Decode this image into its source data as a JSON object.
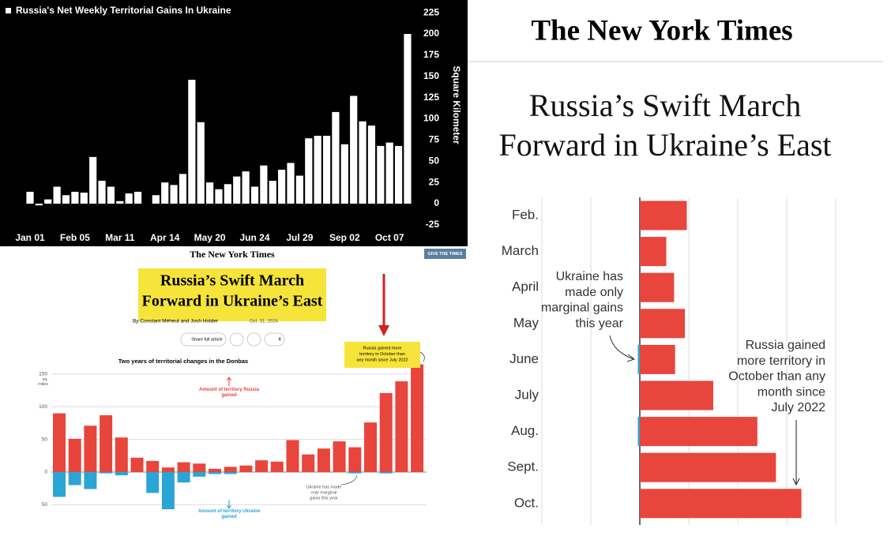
{
  "chart_data": [
    {
      "type": "bar",
      "title": "Russia's Net Weekly Territorial Gains In Ukraine",
      "y_label": "Square Kilometer",
      "categories": [
        "Jan 01",
        null,
        null,
        null,
        null,
        "Feb 05",
        null,
        null,
        null,
        null,
        "Mar 11",
        null,
        null,
        null,
        null,
        "Apr 14",
        null,
        null,
        null,
        null,
        "May 20",
        null,
        null,
        null,
        null,
        "Jun 24",
        null,
        null,
        null,
        null,
        "Jul 29",
        null,
        null,
        null,
        null,
        "Sep 02",
        null,
        null,
        null,
        null,
        "Oct 07",
        null,
        null
      ],
      "values": [
        14,
        -2,
        5,
        20,
        10,
        14,
        13,
        55,
        27,
        20,
        3,
        12,
        14,
        0,
        10,
        25,
        22,
        35,
        146,
        96,
        25,
        17,
        23,
        32,
        38,
        20,
        45,
        27,
        40,
        48,
        33,
        77,
        80,
        80,
        108,
        70,
        127,
        97,
        92,
        68,
        72,
        68,
        200
      ],
      "color": "#ffffff",
      "background": "#000000",
      "ylim": [
        -30,
        230
      ],
      "yticks": [
        225,
        200,
        175,
        150,
        125,
        100,
        75,
        50,
        25,
        0,
        -25
      ],
      "axis_side": "right"
    },
    {
      "type": "bar",
      "title": "Two years of territorial changes in the Donbas",
      "y_unit": "sq. miles",
      "series": [
        {
          "name": "Amount of territory Russia gained",
          "color": "#e8453c",
          "values": [
            90,
            51,
            71,
            87,
            53,
            22,
            17,
            7,
            15,
            13,
            5,
            8,
            10,
            18,
            16,
            49,
            27,
            36,
            47,
            38,
            76,
            121,
            139,
            165
          ]
        },
        {
          "name": "Amount of territory Ukraine gained",
          "color": "#2ba4d6",
          "values": [
            -38,
            -20,
            -26,
            -2,
            -5,
            0,
            -32,
            -57,
            -16,
            -7,
            -3,
            -3,
            0,
            0,
            0,
            0,
            0,
            0,
            0,
            -2,
            0,
            -2,
            0,
            0
          ]
        }
      ],
      "ylim": [
        -65,
        170
      ],
      "yticks": [
        150,
        100,
        50,
        0,
        {
          "value": -50,
          "label": "50"
        }
      ],
      "grid": true,
      "annotations": [
        [
          "Russia gained more",
          "territory in October than",
          "any month since July 2022"
        ],
        [
          "Ukraine has made",
          "only marginal",
          "gains this year"
        ]
      ]
    },
    {
      "type": "hbar",
      "categories": [
        "Feb.",
        "March",
        "April",
        "May",
        "June",
        "July",
        "Aug.",
        "Sept.",
        "Oct."
      ],
      "series": [
        {
          "color": "#e8453c",
          "values": [
            48,
            27,
            35,
            46,
            36,
            75,
            120,
            139,
            165
          ]
        },
        {
          "color": "#2ba4d6",
          "values": [
            0,
            0,
            0,
            0,
            -2,
            0,
            -2,
            0,
            0
          ]
        }
      ],
      "xlim": [
        -100,
        200
      ],
      "xticks": [
        -100,
        -50,
        0,
        50,
        100,
        150,
        200
      ],
      "grid": true,
      "annotations": [
        [
          "Ukraine has",
          "made only",
          "marginal gains",
          "this year"
        ],
        [
          "Russia gained",
          "more territory in",
          "October than any",
          "month since",
          "July 2022"
        ]
      ]
    }
  ],
  "article": {
    "logo": "The New York Times",
    "button": "GIVE THE TIMES",
    "headline": [
      "Russia’s Swift March",
      "Forward in Ukraine’s East"
    ],
    "byline": "By Constant Méheut and Josh Holder",
    "date": "Oct. 31, 2024",
    "share": "Share full article",
    "comments": 4
  },
  "header": {
    "logo": "The New York Times",
    "headline": [
      "Russia’s Swift March",
      "Forward in Ukraine’s East"
    ]
  }
}
